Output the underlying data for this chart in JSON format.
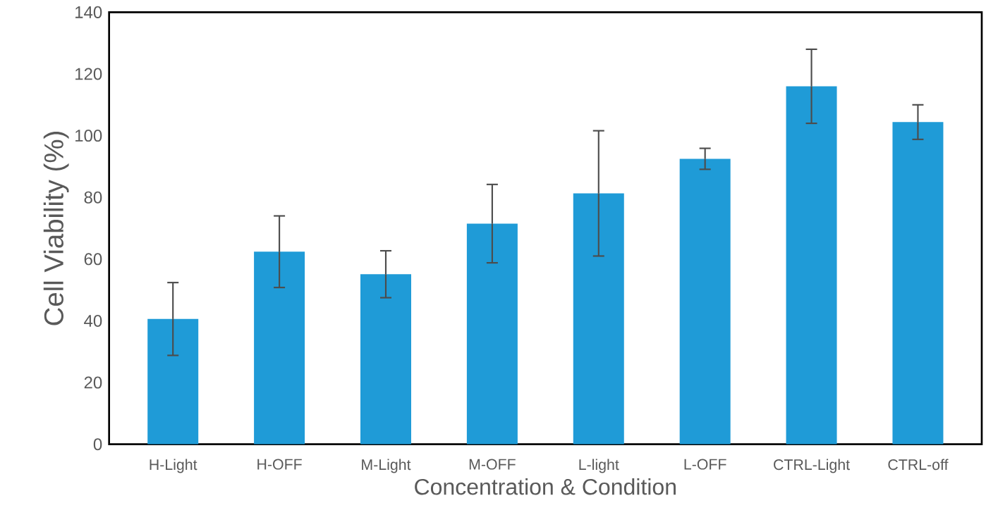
{
  "chart_data": {
    "type": "bar",
    "xlabel": "Concentration & Condition",
    "ylabel": "Cell Viability (%)",
    "categories": [
      "H-Light",
      "H-OFF",
      "M-Light",
      "M-OFF",
      "L-light",
      "L-OFF",
      "CTRL-Light",
      "CTRL-off"
    ],
    "values": [
      40.6,
      62.4,
      55.1,
      71.5,
      81.3,
      92.5,
      116,
      104.4
    ],
    "errors": [
      11.8,
      11.6,
      7.6,
      12.7,
      20.3,
      3.4,
      12,
      5.6
    ],
    "color": "#1f9bd7",
    "ylim": [
      0,
      140
    ],
    "yticks": [
      0,
      20,
      40,
      60,
      80,
      100,
      120,
      140
    ]
  }
}
